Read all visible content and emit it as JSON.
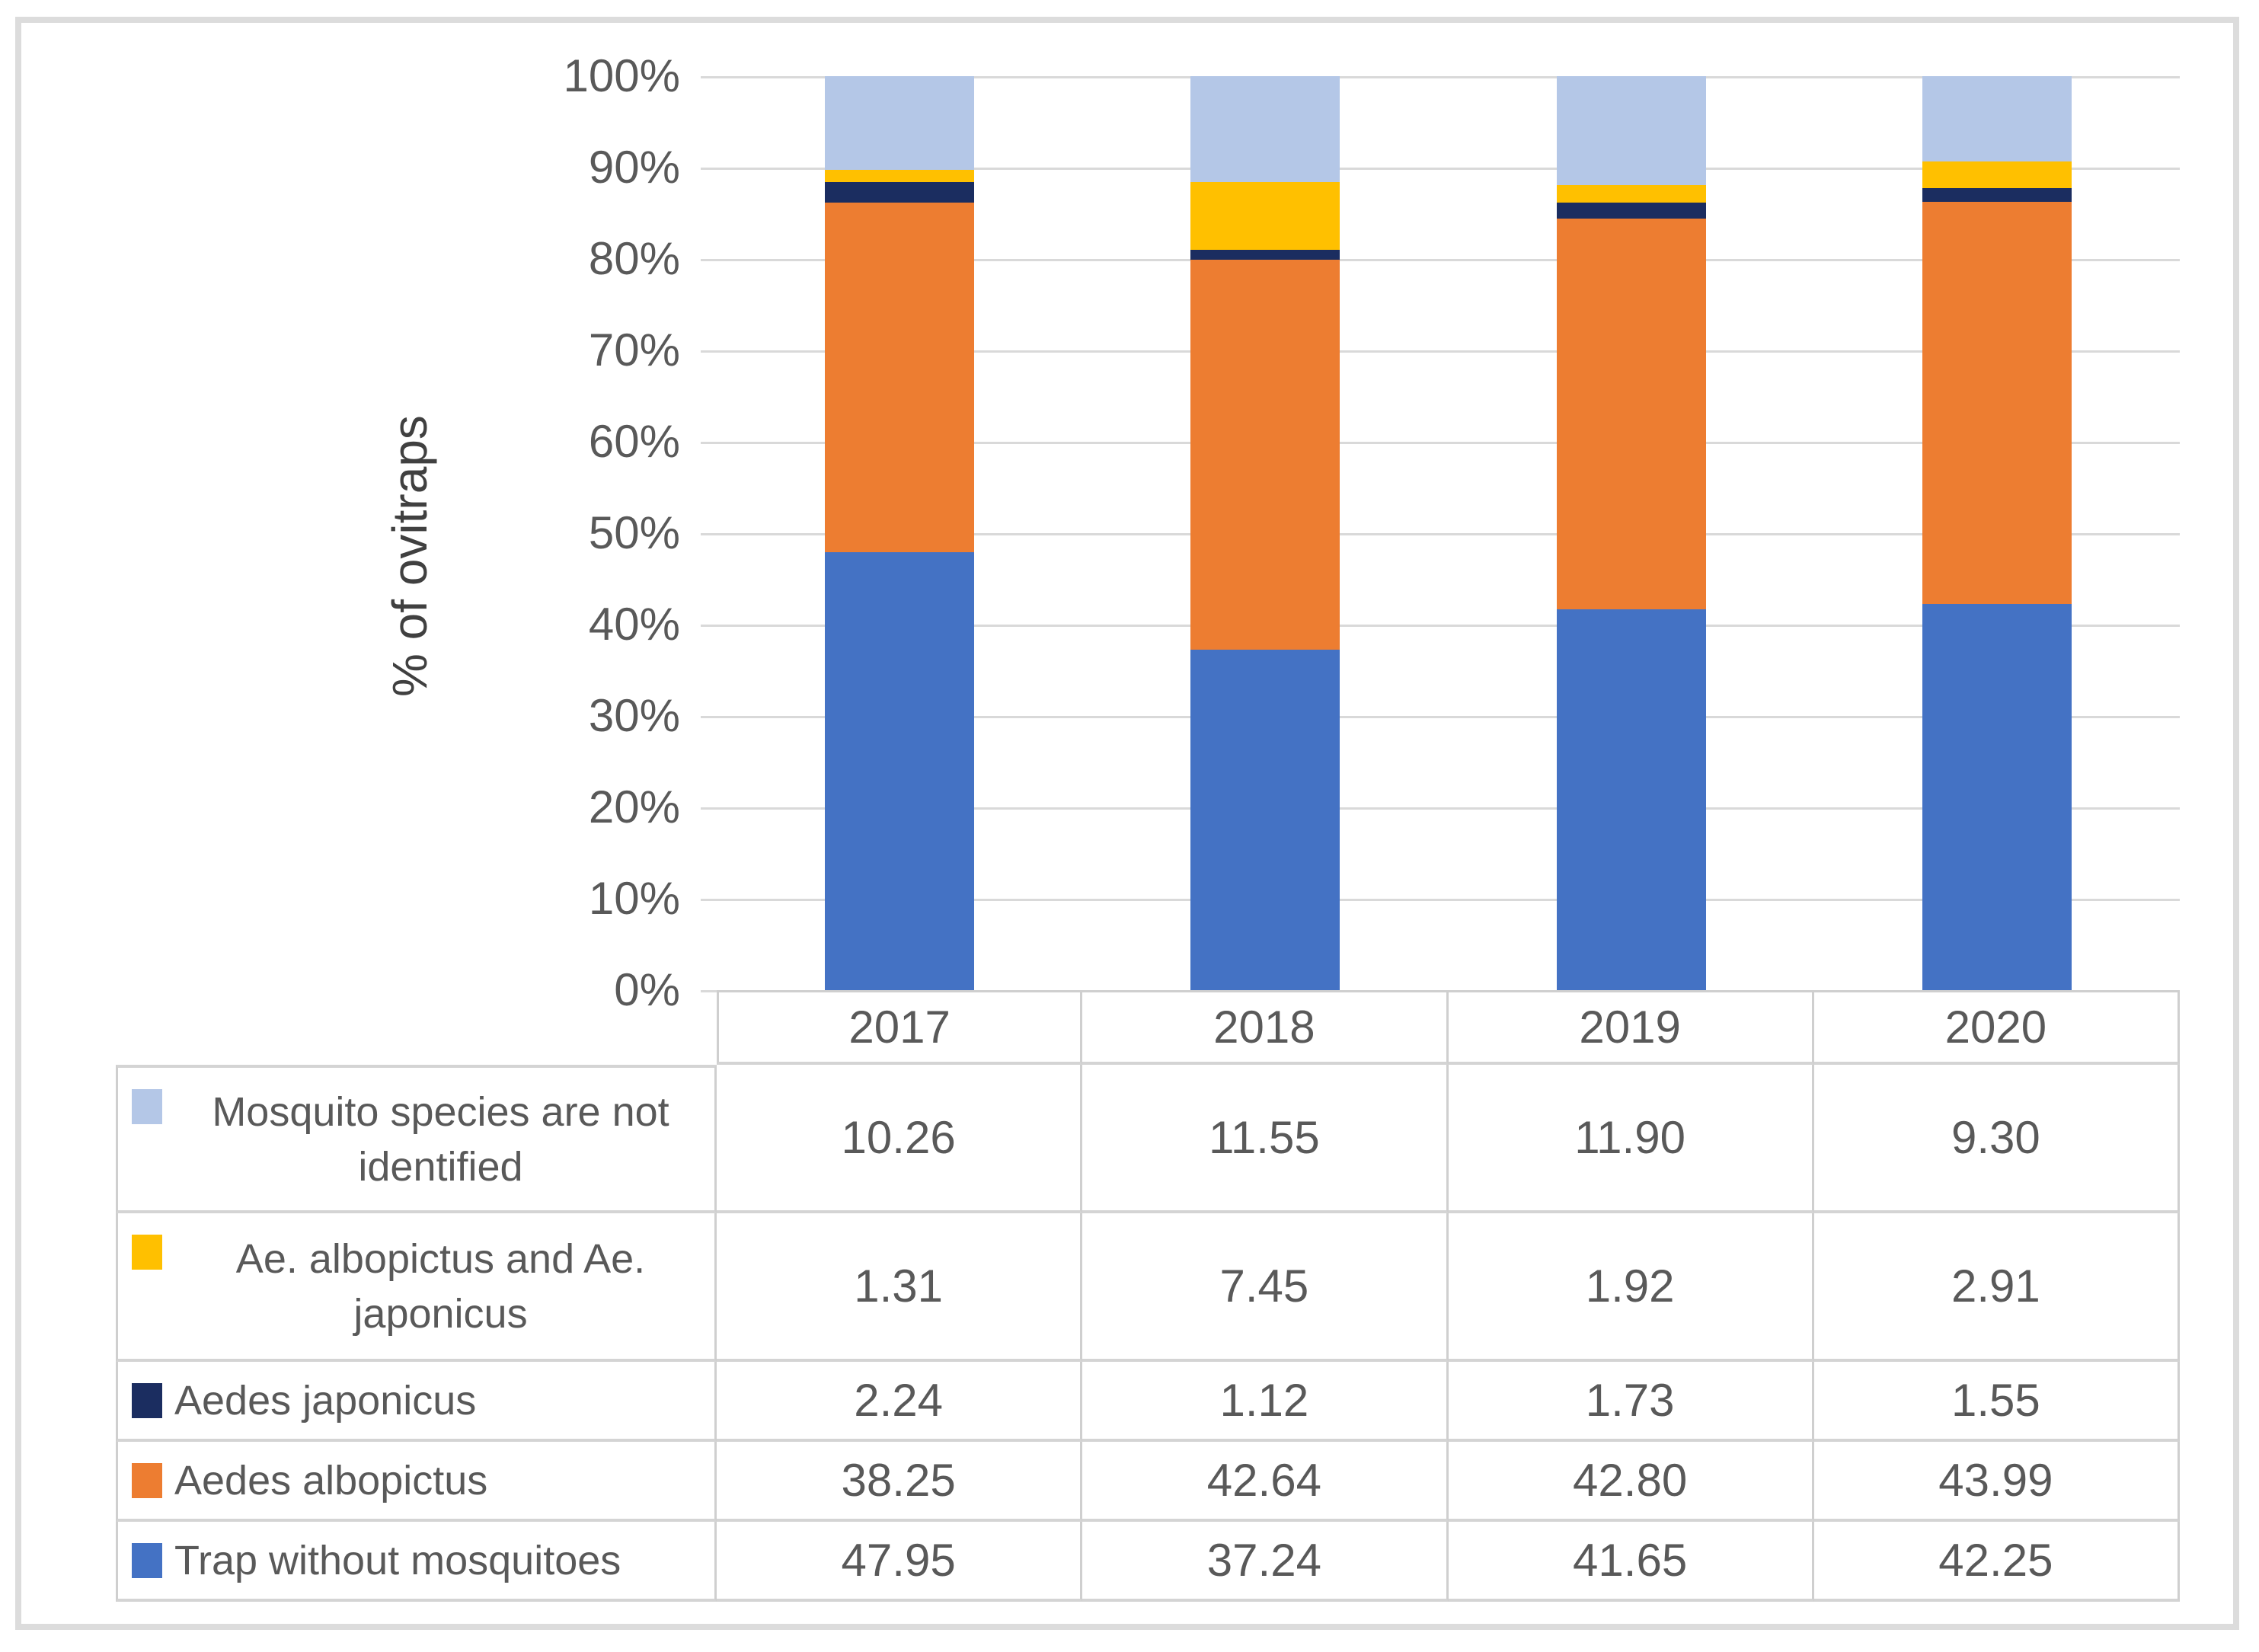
{
  "chart_data": {
    "type": "bar",
    "stacked": true,
    "percent_stacked": true,
    "title": "",
    "xlabel": "",
    "ylabel": "% of ovitraps",
    "ylim": [
      0,
      100
    ],
    "grid": true,
    "y_tick_labels": [
      "100%",
      "90%",
      "80%",
      "70%",
      "60%",
      "50%",
      "40%",
      "30%",
      "20%",
      "10%",
      "0%"
    ],
    "categories": [
      "2017",
      "2018",
      "2019",
      "2020"
    ],
    "series": [
      {
        "name": "Mosquito species are not identified",
        "color": "#b4c7e7",
        "values": [
          10.26,
          11.55,
          11.9,
          9.3
        ]
      },
      {
        "name": "Ae. albopictus and Ae. japonicus",
        "color": "#ffc000",
        "values": [
          1.31,
          7.45,
          1.92,
          2.91
        ]
      },
      {
        "name": "Aedes japonicus",
        "color": "#1b2d60",
        "values": [
          2.24,
          1.12,
          1.73,
          1.55
        ]
      },
      {
        "name": "Aedes albopictus",
        "color": "#ed7d31",
        "values": [
          38.25,
          42.64,
          42.8,
          43.99
        ]
      },
      {
        "name": "Trap without mosquitoes",
        "color": "#4472c4",
        "values": [
          47.95,
          37.24,
          41.65,
          42.25
        ]
      }
    ],
    "stack_order_bottom_to_top": [
      "Trap without mosquitoes",
      "Aedes albopictus",
      "Aedes japonicus",
      "Ae. albopictus and Ae. japonicus",
      "Mosquito species are not identified"
    ],
    "legend_position": "data-table-left-column",
    "value_format": "2-decimals"
  },
  "colors": {
    "gridline": "#d9d9d9",
    "table_border": "#cfcfcf",
    "axis_text": "#595959",
    "outer_frame": "#dcdcdc"
  }
}
